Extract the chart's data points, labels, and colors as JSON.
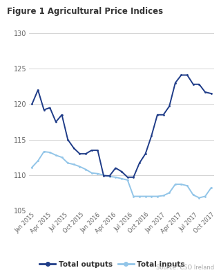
{
  "title": "Figure 1 Agricultural Price Indices",
  "source": "Source: CSO Ireland",
  "x_labels": [
    "Jan 2015",
    "Apr 2015",
    "Jul 2015",
    "Oct 2015",
    "Jan 2016",
    "Apr 2016",
    "Jul 2016",
    "Oct 2016",
    "Jan 2017",
    "Apr 2017",
    "Jul 2017",
    "Oct 2017"
  ],
  "total_outputs": [
    120.0,
    122.0,
    119.2,
    119.5,
    117.5,
    118.5,
    115.0,
    113.8,
    113.0,
    113.0,
    113.5,
    113.5,
    109.9,
    109.9,
    111.0,
    110.5,
    109.7,
    109.7,
    111.7,
    113.0,
    115.5,
    118.5,
    118.5,
    119.7,
    123.0,
    124.1,
    124.1,
    122.8,
    122.8,
    121.7,
    121.5
  ],
  "total_inputs": [
    111.1,
    112.0,
    113.3,
    113.2,
    112.8,
    112.5,
    111.7,
    111.5,
    111.2,
    110.8,
    110.3,
    110.2,
    110.0,
    109.8,
    109.7,
    109.5,
    109.3,
    107.0,
    107.0,
    107.0,
    107.0,
    107.0,
    107.1,
    107.5,
    108.7,
    108.7,
    108.5,
    107.2,
    106.8,
    107.0,
    108.2
  ],
  "outputs_color": "#1f3c88",
  "inputs_color": "#92c5e8",
  "grid_color": "#cccccc",
  "ylim": [
    105,
    130
  ],
  "yticks": [
    105,
    110,
    115,
    120,
    125,
    130
  ],
  "bg_color": "#ffffff",
  "title_color": "#333333",
  "legend_outputs": "Total outputs",
  "legend_inputs": "Total inputs",
  "source_color": "#aaaaaa",
  "tick_color": "#666666"
}
